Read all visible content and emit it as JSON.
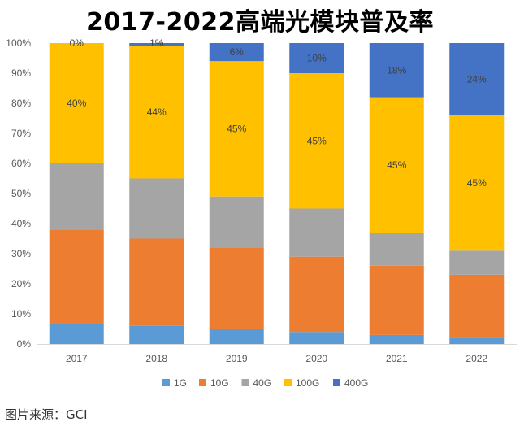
{
  "chart_data": {
    "type": "bar",
    "stacked": true,
    "title": "2017-2022高端光模块普及率",
    "xlabel": "",
    "ylabel": "",
    "ylim": [
      0,
      100
    ],
    "y_ticks": [
      "0%",
      "10%",
      "20%",
      "30%",
      "40%",
      "50%",
      "60%",
      "70%",
      "80%",
      "90%",
      "100%"
    ],
    "categories": [
      "2017",
      "2018",
      "2019",
      "2020",
      "2021",
      "2022"
    ],
    "series": [
      {
        "name": "1G",
        "color": "#5B9BD5",
        "values": [
          7,
          6,
          5,
          4,
          3,
          2
        ],
        "labels": [
          "",
          "",
          "",
          "",
          "",
          ""
        ]
      },
      {
        "name": "10G",
        "color": "#ED7D31",
        "values": [
          31,
          29,
          27,
          25,
          23,
          21
        ],
        "labels": [
          "",
          "",
          "",
          "",
          "",
          ""
        ]
      },
      {
        "name": "40G",
        "color": "#A5A5A5",
        "values": [
          22,
          20,
          17,
          16,
          11,
          8
        ],
        "labels": [
          "",
          "",
          "",
          "",
          "",
          ""
        ]
      },
      {
        "name": "100G",
        "color": "#FFC000",
        "values": [
          40,
          44,
          45,
          45,
          45,
          45
        ],
        "labels": [
          "40%",
          "44%",
          "45%",
          "45%",
          "45%",
          "45%"
        ]
      },
      {
        "name": "400G",
        "color": "#4472C4",
        "values": [
          0,
          1,
          6,
          10,
          18,
          24
        ],
        "labels": [
          "0%",
          "1%",
          "6%",
          "10%",
          "18%",
          "24%"
        ]
      }
    ],
    "legend_position": "bottom",
    "grid": false
  },
  "source_note": "图片来源：GCI"
}
